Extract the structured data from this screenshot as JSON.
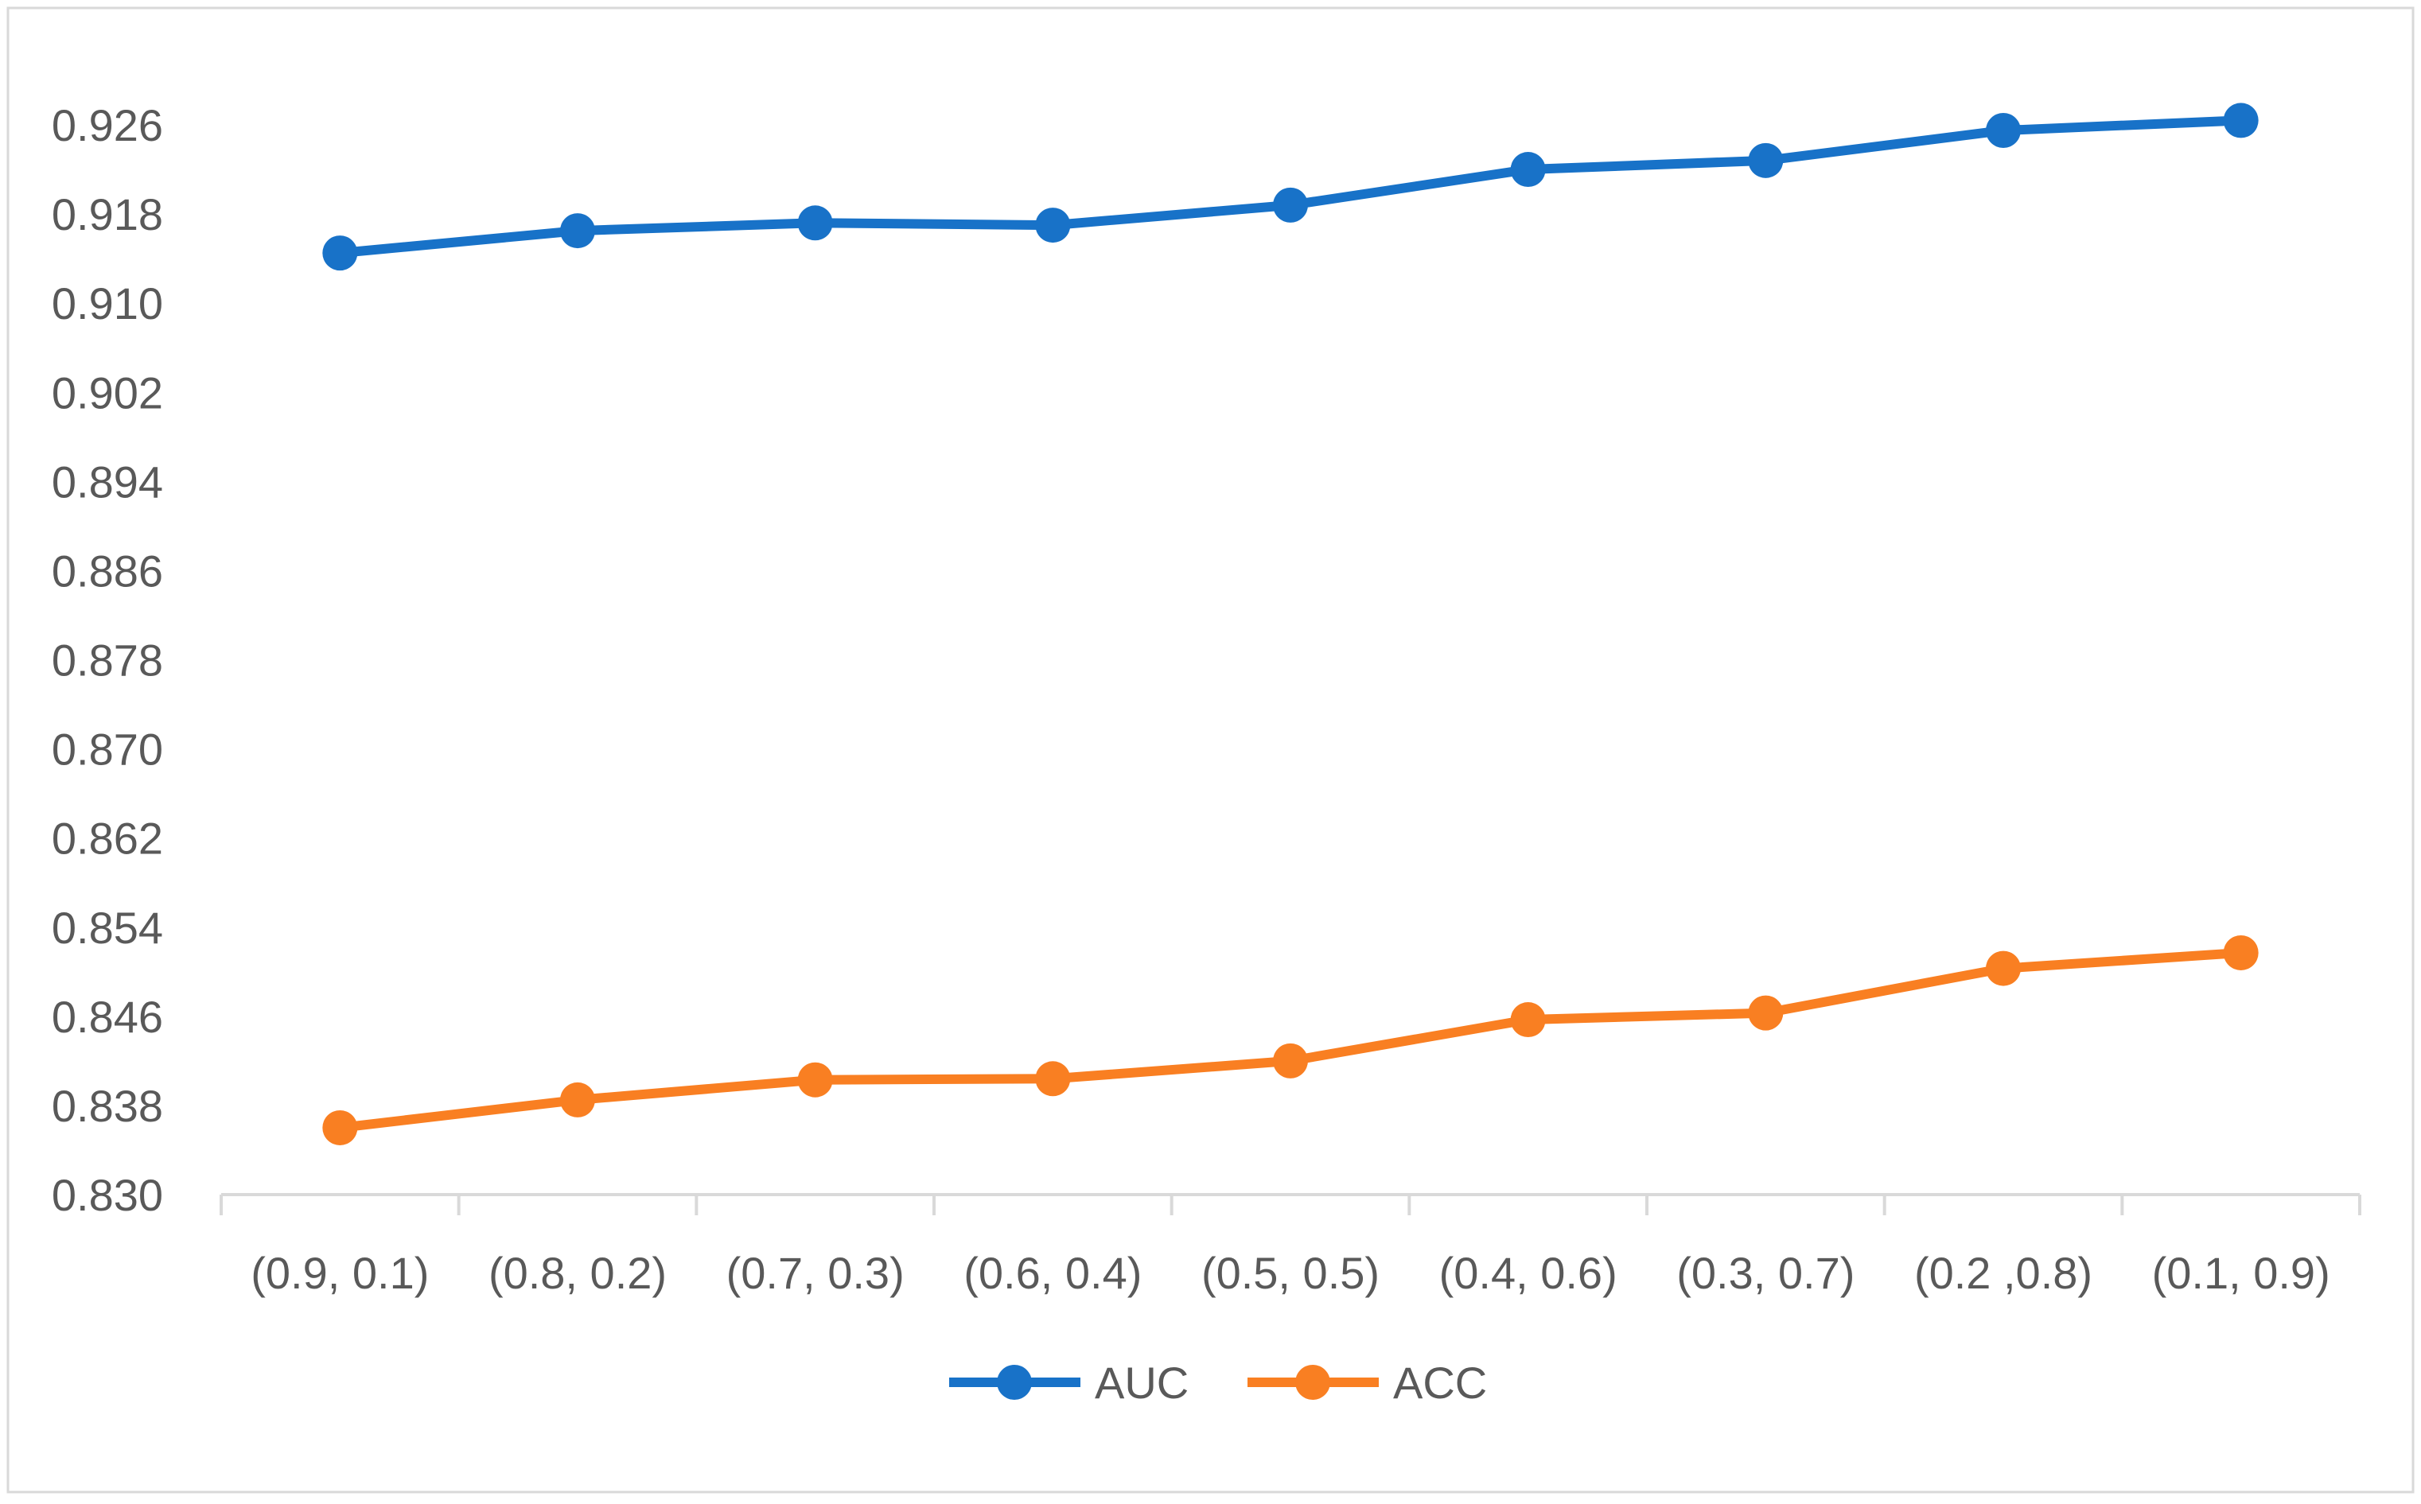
{
  "chart_data": {
    "type": "line",
    "title": "",
    "xlabel": "",
    "ylabel": "",
    "categories": [
      "(0.9, 0.1)",
      "(0.8, 0.2)",
      "(0.7, 0.3)",
      "(0.6, 0.4)",
      "(0.5, 0.5)",
      "(0.4, 0.6)",
      "(0.3, 0.7)",
      "(0.2 ,0.8)",
      "(0.1, 0.9)"
    ],
    "ylim": [
      0.83,
      0.93
    ],
    "yticks": [
      "0.830",
      "0.838",
      "0.846",
      "0.854",
      "0.862",
      "0.870",
      "0.878",
      "0.886",
      "0.894",
      "0.902",
      "0.910",
      "0.918",
      "0.926"
    ],
    "grid": false,
    "legend_position": "bottom",
    "series": [
      {
        "name": "AUC",
        "color": "#1872C8",
        "values": [
          0.9145,
          0.9165,
          0.9172,
          0.917,
          0.9188,
          0.922,
          0.9228,
          0.9255,
          0.9264
        ]
      },
      {
        "name": "ACC",
        "color": "#F97F22",
        "values": [
          0.836,
          0.8385,
          0.8403,
          0.8404,
          0.842,
          0.8457,
          0.8463,
          0.8503,
          0.8517
        ]
      }
    ]
  }
}
